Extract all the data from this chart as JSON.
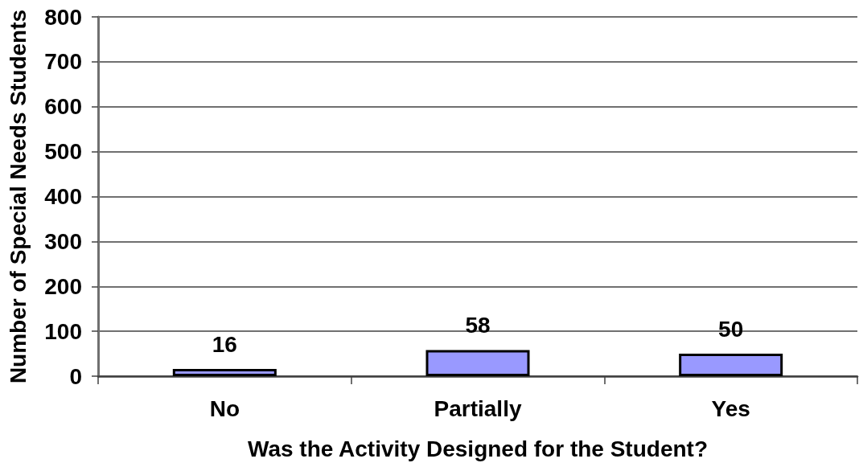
{
  "chart_data": {
    "type": "bar",
    "xlabel": "Was the Activity Designed for the Student?",
    "ylabel": "Number of Special Needs Students",
    "categories": [
      "No",
      "Partially",
      "Yes"
    ],
    "values": [
      16,
      58,
      50
    ],
    "color": "#9999ff",
    "ylim": [
      0,
      800
    ],
    "yticks": [
      0,
      100,
      200,
      300,
      400,
      500,
      600,
      700,
      800
    ],
    "grid": "y",
    "data_labels": true
  }
}
